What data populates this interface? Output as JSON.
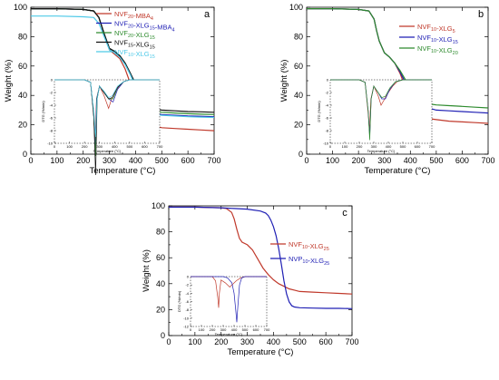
{
  "panels": [
    {
      "letter": "a",
      "xlabel": "Temperature (°C)",
      "ylabel": "Weight (%)",
      "xticks": [
        "0",
        "100",
        "200",
        "300",
        "400",
        "500",
        "600",
        "700"
      ],
      "yticks": [
        "0",
        "20",
        "40",
        "60",
        "80",
        "100"
      ],
      "legend": [
        {
          "main": "NVF",
          "sub": "20",
          "tail": "-MBA",
          "sub2": "4",
          "color": "#c0392b"
        },
        {
          "main": "NVF",
          "sub": "20",
          "tail": "-XLG",
          "sub2": "15",
          "tail2": "-MBA",
          "sub3": "4",
          "color": "#1f1fb4"
        },
        {
          "main": "NVF",
          "sub": "20",
          "tail": "-XLG",
          "sub2": "15",
          "color": "#2e8b2e"
        },
        {
          "main": "NVF",
          "sub": "15",
          "tail": "-XLG",
          "sub2": "15",
          "color": "#111111"
        },
        {
          "main": "NVF",
          "sub": "10",
          "tail": "-XLG",
          "sub2": "15",
          "color": "#4ec9e8"
        }
      ],
      "inset": {
        "ylabel": "DTG (%/min)",
        "xlabel": "Temperature (°C)",
        "xticks": [
          "0",
          "100",
          "200",
          "300",
          "400",
          "500",
          "600",
          "700"
        ],
        "yticks": [
          "0",
          "-2",
          "-4",
          "-6",
          "-8",
          "-10"
        ]
      }
    },
    {
      "letter": "b",
      "xlabel": "Temperature (°C)",
      "ylabel": "Weight (%)",
      "xticks": [
        "0",
        "100",
        "200",
        "300",
        "400",
        "500",
        "600",
        "700"
      ],
      "yticks": [
        "0",
        "20",
        "40",
        "60",
        "80",
        "100"
      ],
      "legend": [
        {
          "main": "NVF",
          "sub": "10",
          "tail": "-XLG",
          "sub2": "5",
          "color": "#c0392b"
        },
        {
          "main": "NVF",
          "sub": "10",
          "tail": "-XLG",
          "sub2": "15",
          "color": "#1f1fb4"
        },
        {
          "main": "NVF",
          "sub": "10",
          "tail": "-XLG",
          "sub2": "20",
          "color": "#2e8b2e"
        }
      ],
      "inset": {
        "ylabel": "DTG (%/min)",
        "xlabel": "Temperature (°C)",
        "xticks": [
          "0",
          "100",
          "200",
          "300",
          "400",
          "500",
          "600",
          "700"
        ],
        "yticks": [
          "0",
          "-2",
          "-4",
          "-6",
          "-8",
          "-10"
        ]
      }
    },
    {
      "letter": "c",
      "xlabel": "Temperature (°C)",
      "ylabel": "Weight (%)",
      "xticks": [
        "0",
        "100",
        "200",
        "300",
        "400",
        "500",
        "600",
        "700"
      ],
      "yticks": [
        "0",
        "20",
        "40",
        "60",
        "80",
        "100"
      ],
      "legend": [
        {
          "main": "NVF",
          "sub": "10",
          "tail": "-XLG",
          "sub2": "25",
          "color": "#c0392b"
        },
        {
          "main": "NVP",
          "sub": "10",
          "tail": "-XLG",
          "sub2": "25",
          "color": "#1f1fb4"
        }
      ],
      "inset": {
        "ylabel": "DTG (%/min)",
        "xlabel": "Temperature (°C)",
        "xticks": [
          "0",
          "100",
          "200",
          "300",
          "400",
          "500",
          "600",
          "700"
        ],
        "yticks": [
          "0",
          "-2",
          "-4",
          "-6",
          "-8",
          "-10",
          "-12"
        ]
      }
    }
  ],
  "chart_data": [
    {
      "type": "line",
      "panel": "a",
      "xlabel": "Temperature (°C)",
      "ylabel": "Weight (%)",
      "xlim": [
        0,
        700
      ],
      "ylim": [
        0,
        100
      ],
      "series": [
        {
          "name": "NVF20-MBA4",
          "color": "#c0392b",
          "x": [
            0,
            100,
            200,
            240,
            260,
            280,
            300,
            320,
            340,
            360,
            380,
            400,
            420,
            440,
            460,
            480,
            500,
            550,
            600,
            650,
            700
          ],
          "y": [
            99,
            99,
            98.5,
            97.5,
            93,
            82,
            71,
            68,
            65,
            58,
            48,
            39,
            31,
            25,
            21,
            19,
            18,
            17.5,
            17,
            16.5,
            16
          ]
        },
        {
          "name": "NVF20-XLG15-MBA4",
          "color": "#1f1fb4",
          "x": [
            0,
            100,
            200,
            240,
            260,
            280,
            300,
            320,
            340,
            360,
            380,
            400,
            420,
            440,
            460,
            480,
            500,
            550,
            600,
            650,
            700
          ],
          "y": [
            99,
            99,
            98.5,
            97.5,
            93,
            82,
            72,
            70,
            67,
            62,
            55,
            47,
            39,
            33,
            29,
            27.5,
            27,
            26.5,
            26,
            25.8,
            25.5
          ]
        },
        {
          "name": "NVF20-XLG15",
          "color": "#2e8b2e",
          "x": [
            0,
            100,
            200,
            240,
            260,
            280,
            300,
            320,
            340,
            360,
            380,
            400,
            420,
            440,
            460,
            480,
            500,
            550,
            600,
            650,
            700
          ],
          "y": [
            99,
            99,
            98.5,
            97.5,
            93,
            82,
            72,
            70,
            67,
            62,
            55,
            47,
            40,
            34,
            30.5,
            29,
            28.5,
            28,
            27.5,
            27.2,
            27
          ]
        },
        {
          "name": "NVF15-XLG15",
          "color": "#111111",
          "x": [
            0,
            100,
            200,
            240,
            260,
            280,
            300,
            320,
            340,
            360,
            380,
            400,
            420,
            440,
            460,
            480,
            500,
            550,
            600,
            650,
            700
          ],
          "y": [
            99,
            99,
            98.5,
            97.5,
            93,
            82,
            72,
            70,
            67,
            62,
            55,
            48,
            41,
            35,
            32,
            30.5,
            30,
            29.5,
            29,
            28.8,
            28.5
          ]
        },
        {
          "name": "NVF10-XLG15",
          "color": "#4ec9e8",
          "x": [
            0,
            100,
            200,
            240,
            260,
            280,
            300,
            320,
            340,
            360,
            380,
            400,
            420,
            440,
            460,
            480,
            500,
            550,
            600,
            650,
            700
          ],
          "y": [
            94,
            94,
            93.5,
            93,
            89,
            80,
            71,
            69,
            66,
            61,
            54,
            46,
            38,
            32,
            28.5,
            27,
            26.5,
            26,
            25.5,
            25.2,
            25
          ]
        }
      ]
    },
    {
      "type": "line",
      "panel": "b",
      "xlabel": "Temperature (°C)",
      "ylabel": "Weight (%)",
      "xlim": [
        0,
        700
      ],
      "ylim": [
        0,
        100
      ],
      "series": [
        {
          "name": "NVF10-XLG5",
          "color": "#c0392b",
          "x": [
            0,
            100,
            200,
            240,
            260,
            270,
            280,
            300,
            320,
            340,
            360,
            380,
            400,
            420,
            440,
            460,
            480,
            500,
            550,
            600,
            650,
            700
          ],
          "y": [
            99,
            99,
            98.5,
            97.5,
            92,
            84,
            77,
            69,
            66,
            62,
            55,
            46,
            38,
            32,
            28,
            25,
            24,
            23.5,
            22.5,
            22,
            21.5,
            21
          ]
        },
        {
          "name": "NVF10-XLG15",
          "color": "#1f1fb4",
          "x": [
            0,
            100,
            200,
            240,
            260,
            270,
            280,
            300,
            320,
            340,
            360,
            380,
            400,
            420,
            440,
            460,
            480,
            500,
            550,
            600,
            650,
            700
          ],
          "y": [
            99,
            99,
            98.5,
            97.5,
            92,
            84,
            77,
            69,
            66,
            62,
            56,
            49,
            42,
            37,
            34,
            32,
            31,
            30,
            29.5,
            29,
            28.5,
            28
          ]
        },
        {
          "name": "NVF10-XLG20",
          "color": "#2e8b2e",
          "x": [
            0,
            100,
            200,
            240,
            260,
            270,
            280,
            300,
            320,
            340,
            360,
            380,
            400,
            420,
            440,
            460,
            480,
            500,
            550,
            600,
            650,
            700
          ],
          "y": [
            99,
            99,
            98.5,
            97.5,
            92,
            84,
            77,
            69,
            66,
            62,
            57,
            51,
            45,
            40,
            37,
            35,
            34,
            33.5,
            33,
            32.5,
            32,
            31.5
          ]
        }
      ]
    },
    {
      "type": "line",
      "panel": "c",
      "xlabel": "Temperature (°C)",
      "ylabel": "Weight (%)",
      "xlim": [
        0,
        700
      ],
      "ylim": [
        0,
        100
      ],
      "series": [
        {
          "name": "NVF10-XLG25",
          "color": "#c0392b",
          "x": [
            0,
            100,
            200,
            220,
            240,
            250,
            260,
            270,
            280,
            300,
            320,
            340,
            360,
            380,
            400,
            420,
            440,
            460,
            480,
            500,
            550,
            600,
            650,
            700
          ],
          "y": [
            99,
            99,
            98.5,
            98,
            95,
            90,
            82,
            75,
            72,
            70,
            66,
            59,
            52,
            47,
            43,
            40,
            38,
            36,
            35,
            34,
            33.5,
            33,
            32.5,
            32
          ]
        },
        {
          "name": "NVP10-XLG25",
          "color": "#1f1fb4",
          "x": [
            0,
            100,
            200,
            250,
            300,
            350,
            370,
            380,
            390,
            400,
            410,
            420,
            430,
            440,
            450,
            460,
            470,
            480,
            500,
            550,
            600,
            650,
            700
          ],
          "y": [
            99,
            99,
            98.5,
            98,
            97.5,
            96,
            94.5,
            92.5,
            89,
            84,
            77,
            67,
            55,
            42,
            32,
            26,
            23,
            22,
            21.5,
            21.2,
            21,
            21,
            20.8
          ]
        }
      ]
    }
  ]
}
